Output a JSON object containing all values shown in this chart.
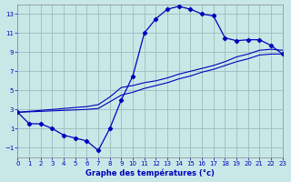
{
  "title": "Graphe des températures (°c)",
  "bg_color": "#c8e8e8",
  "line_color": "#0000bb",
  "grid_color": "#9bbcbc",
  "xlim": [
    0,
    23
  ],
  "ylim": [
    -2,
    14
  ],
  "xticks": [
    0,
    1,
    2,
    3,
    4,
    5,
    6,
    7,
    8,
    9,
    10,
    11,
    12,
    13,
    14,
    15,
    16,
    17,
    18,
    19,
    20,
    21,
    22,
    23
  ],
  "yticks": [
    -1,
    1,
    3,
    5,
    7,
    9,
    11,
    13
  ],
  "curve1_x": [
    0,
    1,
    2,
    3,
    4,
    5,
    6,
    7,
    8,
    9,
    10,
    11,
    12,
    13,
    14,
    15,
    16,
    17,
    18,
    19,
    20,
    21,
    22,
    23
  ],
  "curve1_y": [
    2.7,
    1.5,
    1.5,
    1.0,
    0.3,
    0.0,
    -0.3,
    -1.3,
    1.0,
    4.0,
    6.5,
    11.0,
    12.5,
    13.5,
    13.8,
    13.5,
    13.0,
    12.8,
    10.5,
    10.2,
    10.3,
    10.3,
    9.7,
    8.8
  ],
  "curve2_x": [
    0,
    1,
    2,
    3,
    4,
    5,
    6,
    7,
    8,
    9,
    10,
    11,
    12,
    13,
    14,
    15,
    16,
    17,
    18,
    19,
    20,
    21,
    22,
    23
  ],
  "curve2_y": [
    2.7,
    2.8,
    2.9,
    3.0,
    3.1,
    3.2,
    3.3,
    3.5,
    4.3,
    5.3,
    5.5,
    5.8,
    6.0,
    6.3,
    6.7,
    7.0,
    7.3,
    7.6,
    8.0,
    8.5,
    8.8,
    9.2,
    9.3,
    9.2
  ],
  "curve3_x": [
    0,
    1,
    2,
    3,
    4,
    5,
    6,
    7,
    8,
    9,
    10,
    11,
    12,
    13,
    14,
    15,
    16,
    17,
    18,
    19,
    20,
    21,
    22,
    23
  ],
  "curve3_y": [
    2.7,
    2.75,
    2.8,
    2.85,
    2.9,
    2.95,
    3.0,
    3.1,
    3.8,
    4.5,
    4.8,
    5.2,
    5.5,
    5.8,
    6.2,
    6.5,
    6.9,
    7.2,
    7.6,
    8.0,
    8.3,
    8.7,
    8.8,
    8.8
  ]
}
